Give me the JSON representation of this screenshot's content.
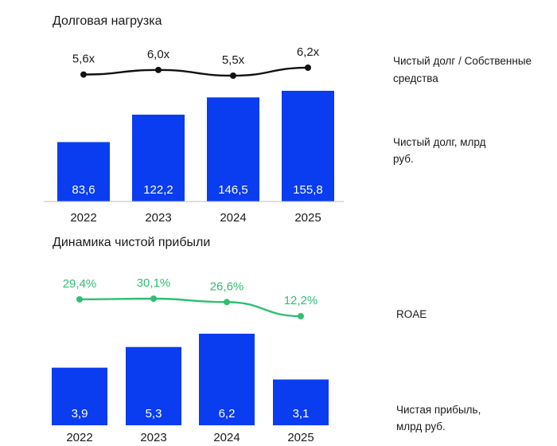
{
  "chart_data": [
    {
      "type": "bar",
      "title": "Долговая нагрузка",
      "categories": [
        "2022",
        "2023",
        "2024",
        "2025"
      ],
      "series": [
        {
          "name": "Чистый долг, млрд руб.",
          "type": "bar",
          "values": [
            83.6,
            122.2,
            146.5,
            155.8
          ],
          "labels": [
            "83,6",
            "122,2",
            "146,5",
            "155,8"
          ],
          "color": "#0a3cf0"
        },
        {
          "name": "Чистый долг / Собственные средства",
          "type": "line",
          "values": [
            5.6,
            6.0,
            5.5,
            6.2
          ],
          "labels": [
            "5,6х",
            "6,0х",
            "5,5х",
            "6,2х"
          ],
          "color": "#111111"
        }
      ],
      "legend": [
        {
          "lines": [
            "Чистый долг / Собственные",
            "средства"
          ]
        },
        {
          "lines": [
            "Чистый долг, млрд",
            "руб."
          ]
        }
      ],
      "legend_placement": "right",
      "grid": false
    },
    {
      "type": "bar",
      "title": "Динамика чистой прибыли",
      "categories": [
        "2022",
        "2023",
        "2024",
        "2025"
      ],
      "series": [
        {
          "name": "Чистая прибыль, млрд руб.",
          "type": "bar",
          "values": [
            3.9,
            5.3,
            6.2,
            3.1
          ],
          "labels": [
            "3,9",
            "5,3",
            "6,2",
            "3,1"
          ],
          "color": "#0a3cf0"
        },
        {
          "name": "ROAE",
          "type": "line",
          "values": [
            29.4,
            30.1,
            26.6,
            12.2
          ],
          "labels": [
            "29,4%",
            "30,1%",
            "26,6%",
            "12,2%"
          ],
          "color": "#2fbf71"
        }
      ],
      "legend": [
        {
          "lines": [
            "ROAE"
          ]
        },
        {
          "lines": [
            "Чистая прибыль,",
            "млрд руб."
          ]
        }
      ],
      "legend_placement": "right",
      "grid": false
    }
  ]
}
